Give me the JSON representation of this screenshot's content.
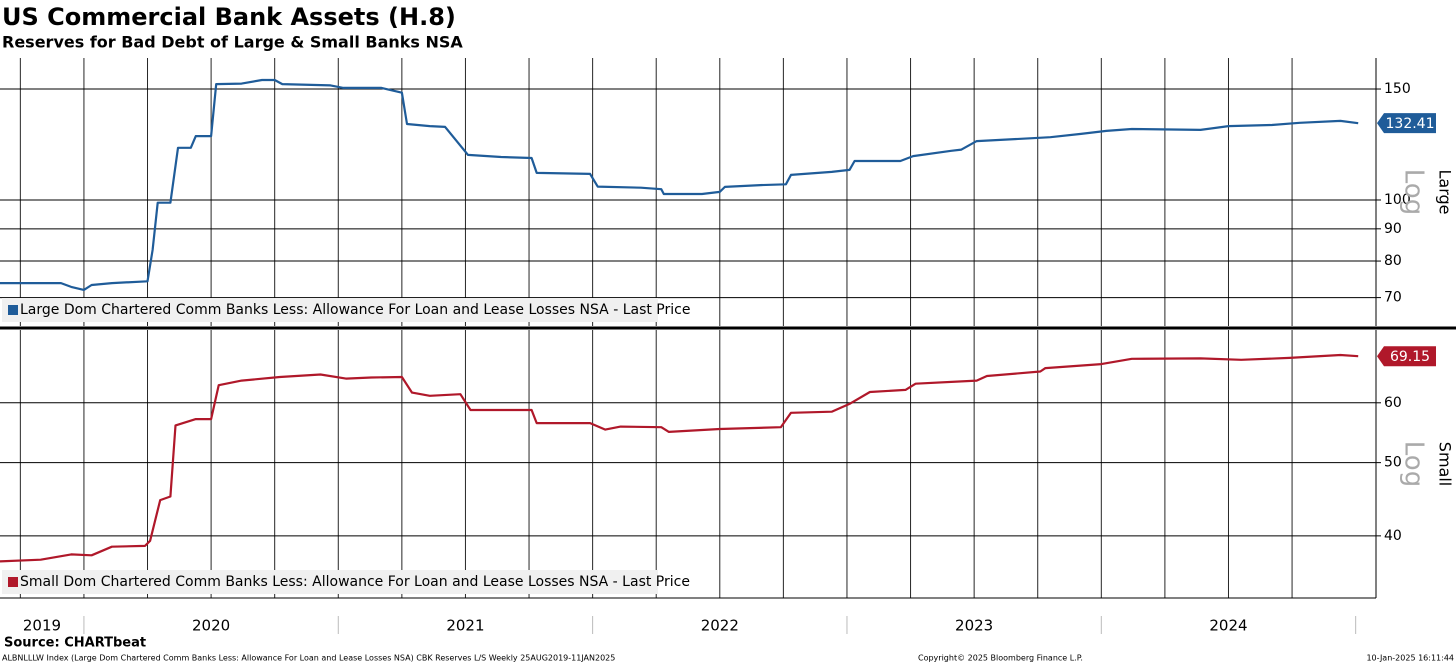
{
  "title": "US Commercial Bank Assets (H.8)",
  "subtitle": "Reserves for Bad Debt of Large & Small Banks NSA",
  "source": "Source: CHARTbeat",
  "footer": {
    "left": "ALBNLLLW Index (Large Dom Chartered Comm Banks Less: Allowance For Loan and Lease Losses NSA) CBK Reserves L/S  Weekly 25AUG2019-11JAN2025",
    "center": "Copyright© 2025 Bloomberg Finance L.P.",
    "right": "10-Jan-2025 16:11:44"
  },
  "chart_data": [
    {
      "type": "line",
      "panel_label": "Large",
      "scale_note": "Log",
      "log_scale": true,
      "grid": true,
      "x": [
        2019.67,
        2019.91,
        2019.95,
        2020.0,
        2020.03,
        2020.11,
        2020.25,
        2020.27,
        2020.29,
        2020.34,
        2020.37,
        2020.42,
        2020.44,
        2020.5,
        2020.52,
        2020.62,
        2020.7,
        2020.75,
        2020.78,
        2020.97,
        2021.02,
        2021.17,
        2021.25,
        2021.27,
        2021.36,
        2021.42,
        2021.51,
        2021.64,
        2021.76,
        2021.78,
        2021.99,
        2022.02,
        2022.19,
        2022.27,
        2022.28,
        2022.43,
        2022.5,
        2022.52,
        2022.66,
        2022.76,
        2022.78,
        2022.94,
        2023.01,
        2023.03,
        2023.21,
        2023.26,
        2023.41,
        2023.45,
        2023.51,
        2023.72,
        2023.8,
        2023.92,
        2024.02,
        2024.12,
        2024.39,
        2024.5,
        2024.67,
        2024.78,
        2024.94,
        2025.01
      ],
      "series": [
        {
          "name": "Large Dom Chartered Comm Banks Less: Allowance For Loan and Lease Losses NSA - Last Price",
          "color": "#1f5c99",
          "values": [
            73.8,
            73.8,
            72.8,
            72.0,
            73.3,
            73.8,
            74.3,
            83.3,
            99.0,
            99.0,
            121.0,
            121.0,
            126.3,
            126.3,
            152.7,
            153.0,
            155.0,
            155.0,
            152.7,
            152.0,
            150.6,
            150.6,
            148.0,
            132.0,
            131.0,
            130.6,
            117.9,
            117.0,
            116.6,
            110.4,
            110.0,
            105.0,
            104.6,
            104.0,
            102.2,
            102.2,
            103.0,
            104.9,
            105.6,
            105.9,
            109.6,
            110.8,
            111.6,
            115.3,
            115.3,
            117.4,
            119.7,
            120.2,
            124.0,
            125.3,
            125.8,
            127.3,
            128.7,
            129.6,
            129.2,
            131.0,
            131.5,
            132.6,
            133.5,
            132.41
          ]
        }
      ],
      "xlim": [
        2019.67,
        2025.08
      ],
      "ylim": [
        63.1,
        168
      ],
      "yticks": [
        70,
        80,
        90,
        100,
        150
      ]
    },
    {
      "type": "line",
      "panel_label": "Small",
      "scale_note": "Log",
      "log_scale": true,
      "grid": true,
      "x": [
        2019.67,
        2019.83,
        2019.95,
        2020.03,
        2020.11,
        2020.24,
        2020.26,
        2020.3,
        2020.34,
        2020.36,
        2020.44,
        2020.5,
        2020.53,
        2020.62,
        2020.77,
        2020.93,
        2021.03,
        2021.13,
        2021.25,
        2021.29,
        2021.36,
        2021.48,
        2021.52,
        2021.76,
        2021.78,
        2021.99,
        2022.05,
        2022.11,
        2022.27,
        2022.3,
        2022.5,
        2022.74,
        2022.78,
        2022.94,
        2023.01,
        2023.09,
        2023.23,
        2023.27,
        2023.51,
        2023.55,
        2023.76,
        2023.78,
        2024.0,
        2024.12,
        2024.39,
        2024.55,
        2024.74,
        2024.94,
        2025.01
      ],
      "series": [
        {
          "name": "Small Dom Chartered Comm Banks Less: Allowance For Loan and Lease Losses NSA - Last Price",
          "color": "#b0182a",
          "values": [
            37.0,
            37.2,
            37.8,
            37.7,
            38.7,
            38.8,
            39.4,
            44.6,
            45.1,
            56.0,
            57.1,
            57.1,
            63.3,
            64.2,
            64.9,
            65.4,
            64.6,
            64.8,
            64.9,
            61.9,
            61.3,
            61.6,
            58.7,
            58.7,
            56.4,
            56.4,
            55.3,
            55.8,
            55.7,
            54.9,
            55.4,
            55.7,
            58.2,
            58.4,
            59.8,
            62.0,
            62.4,
            63.6,
            64.2,
            65.1,
            66.0,
            66.7,
            67.5,
            68.6,
            68.7,
            68.4,
            68.8,
            69.4,
            69.15
          ]
        }
      ],
      "xlim": [
        2019.67,
        2025.08
      ],
      "ylim": [
        33.1,
        74.9
      ],
      "yticks": [
        40,
        50,
        60
      ],
      "xticks": [
        2019,
        2020,
        2021,
        2022,
        2023,
        2024
      ]
    }
  ]
}
